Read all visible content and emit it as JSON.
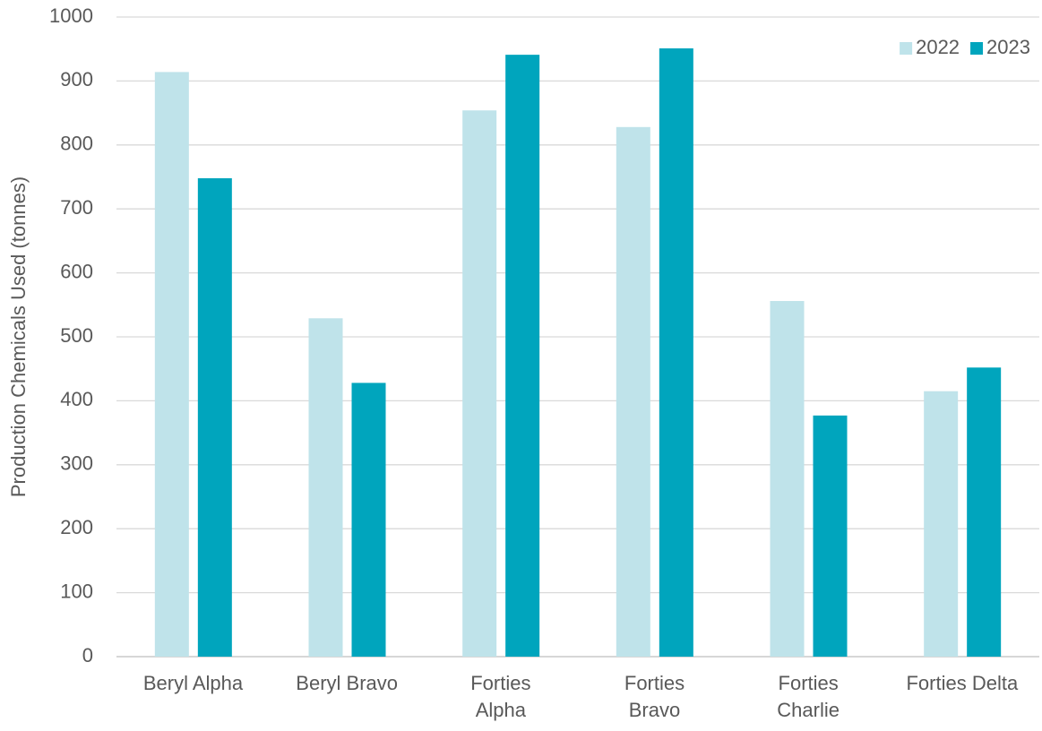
{
  "chart_data": {
    "type": "bar",
    "y_label": "Production Chemicals Used (tonnes)",
    "categories": [
      "Beryl Alpha",
      "Beryl Bravo",
      "Forties\nAlpha",
      "Forties\nBravo",
      "Forties\nCharlie",
      "Forties Delta"
    ],
    "series": [
      {
        "name": "2022",
        "color": "#bfe3ea",
        "values": [
          914,
          529,
          854,
          828,
          556,
          415
        ]
      },
      {
        "name": "2023",
        "color": "#00a5bd",
        "values": [
          748,
          428,
          941,
          951,
          377,
          452
        ]
      }
    ],
    "ylim": [
      0,
      1000
    ],
    "yticks": [
      0,
      100,
      200,
      300,
      400,
      500,
      600,
      700,
      800,
      900,
      1000
    ],
    "grid": true,
    "legend": "top-right"
  }
}
